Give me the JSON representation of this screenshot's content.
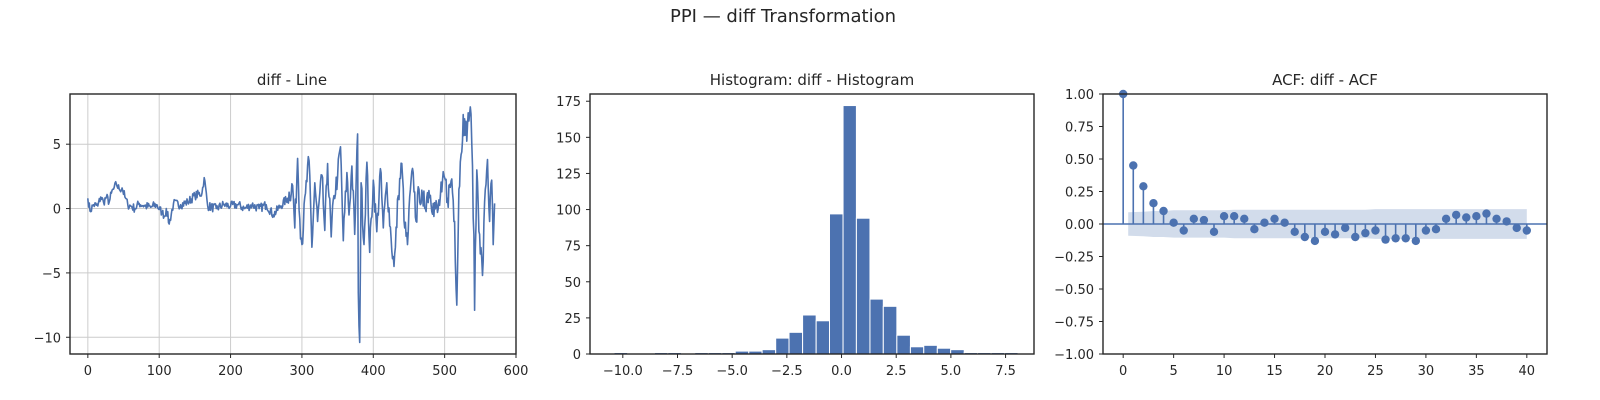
{
  "figure": {
    "suptitle": "PPI — diff Transformation"
  },
  "colors": {
    "series": "#4c72b0",
    "grid": "#cccccc",
    "axes": "#262626",
    "confband": "#4c72b0"
  },
  "chart_data": [
    {
      "type": "line",
      "title": "diff - Line",
      "grid": true,
      "xlim": [
        -25,
        600
      ],
      "ylim": [
        -11.3,
        8.9
      ],
      "xticks": [
        0,
        100,
        200,
        300,
        400,
        500,
        600
      ],
      "xtick_labels": [
        "0",
        "100",
        "200",
        "300",
        "400",
        "500",
        "600"
      ],
      "yticks": [
        -10,
        -5,
        0,
        5
      ],
      "ytick_labels": [
        "−10",
        "−5",
        "0",
        "5"
      ],
      "n": 570,
      "anchors": [
        [
          0,
          0.8
        ],
        [
          3,
          -0.2
        ],
        [
          8,
          0.3
        ],
        [
          14,
          0.2
        ],
        [
          18,
          0.9
        ],
        [
          22,
          0.5
        ],
        [
          26,
          0.9
        ],
        [
          30,
          0.5
        ],
        [
          33,
          1.2
        ],
        [
          36,
          1.5
        ],
        [
          40,
          1.9
        ],
        [
          44,
          1.5
        ],
        [
          48,
          1.6
        ],
        [
          52,
          0.9
        ],
        [
          56,
          0.3
        ],
        [
          60,
          0.2
        ],
        [
          66,
          0.0
        ],
        [
          72,
          0.4
        ],
        [
          80,
          0.2
        ],
        [
          88,
          0.1
        ],
        [
          96,
          0.3
        ],
        [
          104,
          -0.3
        ],
        [
          110,
          0.0
        ],
        [
          108,
          -0.6
        ],
        [
          114,
          -1.2
        ],
        [
          120,
          0.4
        ],
        [
          130,
          0.3
        ],
        [
          140,
          0.5
        ],
        [
          150,
          1.0
        ],
        [
          160,
          1.2
        ],
        [
          163,
          2.4
        ],
        [
          168,
          0.2
        ],
        [
          180,
          0.0
        ],
        [
          190,
          0.3
        ],
        [
          200,
          0.2
        ],
        [
          210,
          0.3
        ],
        [
          220,
          0.0
        ],
        [
          230,
          0.3
        ],
        [
          240,
          0.0
        ],
        [
          250,
          0.3
        ],
        [
          260,
          -0.5
        ],
        [
          270,
          0.2
        ],
        [
          280,
          0.8
        ],
        [
          287,
          1.8
        ],
        [
          290,
          -1.5
        ],
        [
          294,
          3.9
        ],
        [
          297,
          -0.8
        ],
        [
          300,
          -2.8
        ],
        [
          305,
          1.2
        ],
        [
          310,
          3.7
        ],
        [
          314,
          -3.0
        ],
        [
          318,
          2.0
        ],
        [
          322,
          -1.0
        ],
        [
          328,
          2.6
        ],
        [
          332,
          -1.7
        ],
        [
          336,
          3.5
        ],
        [
          341,
          -2.2
        ],
        [
          345,
          1.0
        ],
        [
          350,
          2.5
        ],
        [
          354,
          4.8
        ],
        [
          358,
          -2.5
        ],
        [
          363,
          2.8
        ],
        [
          366,
          -0.5
        ],
        [
          370,
          3.3
        ],
        [
          374,
          -2.0
        ],
        [
          378,
          5.8
        ],
        [
          379,
          -6.5
        ],
        [
          381,
          -10.4
        ],
        [
          383,
          2.0
        ],
        [
          387,
          -2.8
        ],
        [
          391,
          3.6
        ],
        [
          395,
          -3.4
        ],
        [
          400,
          2.2
        ],
        [
          405,
          -1.8
        ],
        [
          410,
          3.1
        ],
        [
          414,
          -1.5
        ],
        [
          419,
          2.0
        ],
        [
          425,
          -2.3
        ],
        [
          429,
          -4.5
        ],
        [
          431,
          -3.0
        ],
        [
          435,
          1.0
        ],
        [
          440,
          3.5
        ],
        [
          444,
          -1.5
        ],
        [
          448,
          -2.8
        ],
        [
          452,
          1.5
        ],
        [
          456,
          2.8
        ],
        [
          460,
          -1.0
        ],
        [
          464,
          1.5
        ],
        [
          470,
          0.2
        ],
        [
          478,
          1.4
        ],
        [
          484,
          0.4
        ],
        [
          490,
          -0.3
        ],
        [
          496,
          1.3
        ],
        [
          500,
          2.4
        ],
        [
          504,
          0.8
        ],
        [
          510,
          2.3
        ],
        [
          514,
          -1.0
        ],
        [
          517,
          -7.5
        ],
        [
          520,
          1.5
        ],
        [
          523,
          4.2
        ],
        [
          526,
          7.3
        ],
        [
          529,
          5.7
        ],
        [
          532,
          6.5
        ],
        [
          536,
          7.9
        ],
        [
          538,
          5.0
        ],
        [
          541,
          -2.0
        ],
        [
          542,
          -7.9
        ],
        [
          545,
          3.0
        ],
        [
          549,
          -2.0
        ],
        [
          553,
          -5.2
        ],
        [
          557,
          1.5
        ],
        [
          560,
          3.8
        ],
        [
          563,
          -1.0
        ],
        [
          566,
          2.2
        ],
        [
          568,
          -2.8
        ],
        [
          570,
          0.4
        ]
      ]
    },
    {
      "type": "histogram",
      "title": "Histogram: diff - Histogram",
      "xlim": [
        -11.5,
        8.8
      ],
      "ylim": [
        0,
        180
      ],
      "xticks": [
        -10.0,
        -7.5,
        -5.0,
        -2.5,
        0.0,
        2.5,
        5.0,
        7.5
      ],
      "xtick_labels": [
        "−10.0",
        "−7.5",
        "−5.0",
        "−2.5",
        "0.0",
        "2.5",
        "5.0",
        "7.5"
      ],
      "yticks": [
        0,
        25,
        50,
        75,
        100,
        125,
        150,
        175
      ],
      "ytick_labels": [
        "0",
        "25",
        "50",
        "75",
        "100",
        "125",
        "150",
        "175"
      ],
      "bin_edges": [
        -10.4,
        -9.78,
        -9.17,
        -8.55,
        -7.94,
        -7.32,
        -6.71,
        -6.09,
        -5.47,
        -4.86,
        -4.24,
        -3.63,
        -3.01,
        -2.4,
        -1.78,
        -1.16,
        -0.55,
        0.07,
        0.68,
        1.3,
        1.91,
        2.53,
        3.15,
        3.76,
        4.38,
        4.99,
        5.61,
        6.22,
        6.84,
        7.46,
        8.07
      ],
      "values": [
        1,
        0,
        0,
        1,
        1,
        0,
        1,
        1,
        1,
        2,
        2,
        3,
        11,
        15,
        27,
        23,
        97,
        172,
        94,
        38,
        33,
        13,
        5,
        6,
        4,
        3,
        1,
        1,
        1,
        1
      ]
    },
    {
      "type": "stem",
      "title": "ACF: diff - ACF",
      "xlim": [
        -2,
        42
      ],
      "ylim": [
        -1.0,
        1.0
      ],
      "xticks": [
        0,
        5,
        10,
        15,
        20,
        25,
        30,
        35,
        40
      ],
      "xtick_labels": [
        "0",
        "5",
        "10",
        "15",
        "20",
        "25",
        "30",
        "35",
        "40"
      ],
      "yticks": [
        -1.0,
        -0.75,
        -0.5,
        -0.25,
        0.0,
        0.25,
        0.5,
        0.75,
        1.0
      ],
      "ytick_labels": [
        "−1.00",
        "−0.75",
        "−0.50",
        "−0.25",
        "0.00",
        "0.25",
        "0.50",
        "0.75",
        "1.00"
      ],
      "lags": [
        0,
        1,
        2,
        3,
        4,
        5,
        6,
        7,
        8,
        9,
        10,
        11,
        12,
        13,
        14,
        15,
        16,
        17,
        18,
        19,
        20,
        21,
        22,
        23,
        24,
        25,
        26,
        27,
        28,
        29,
        30,
        31,
        32,
        33,
        34,
        35,
        36,
        37,
        38,
        39,
        40
      ],
      "values": [
        1.0,
        0.45,
        0.29,
        0.16,
        0.1,
        0.01,
        -0.05,
        0.04,
        0.03,
        -0.06,
        0.06,
        0.06,
        0.04,
        -0.04,
        0.01,
        0.04,
        0.01,
        -0.06,
        -0.1,
        -0.13,
        -0.06,
        -0.08,
        -0.03,
        -0.1,
        -0.07,
        -0.05,
        -0.12,
        -0.11,
        -0.11,
        -0.13,
        -0.05,
        -0.04,
        0.04,
        0.07,
        0.05,
        0.06,
        0.08,
        0.04,
        0.02,
        -0.03,
        -0.05
      ],
      "conf_band": [
        0.08,
        0.09,
        0.095,
        0.1,
        0.1,
        0.105,
        0.105,
        0.105,
        0.105,
        0.105,
        0.105,
        0.11,
        0.11,
        0.11,
        0.11,
        0.11,
        0.11,
        0.11,
        0.11,
        0.11,
        0.11,
        0.11,
        0.11,
        0.11,
        0.11,
        0.115,
        0.115,
        0.115,
        0.115,
        0.115,
        0.115,
        0.115,
        0.115,
        0.115,
        0.115,
        0.115,
        0.115,
        0.115,
        0.115,
        0.115,
        0.115
      ]
    }
  ]
}
